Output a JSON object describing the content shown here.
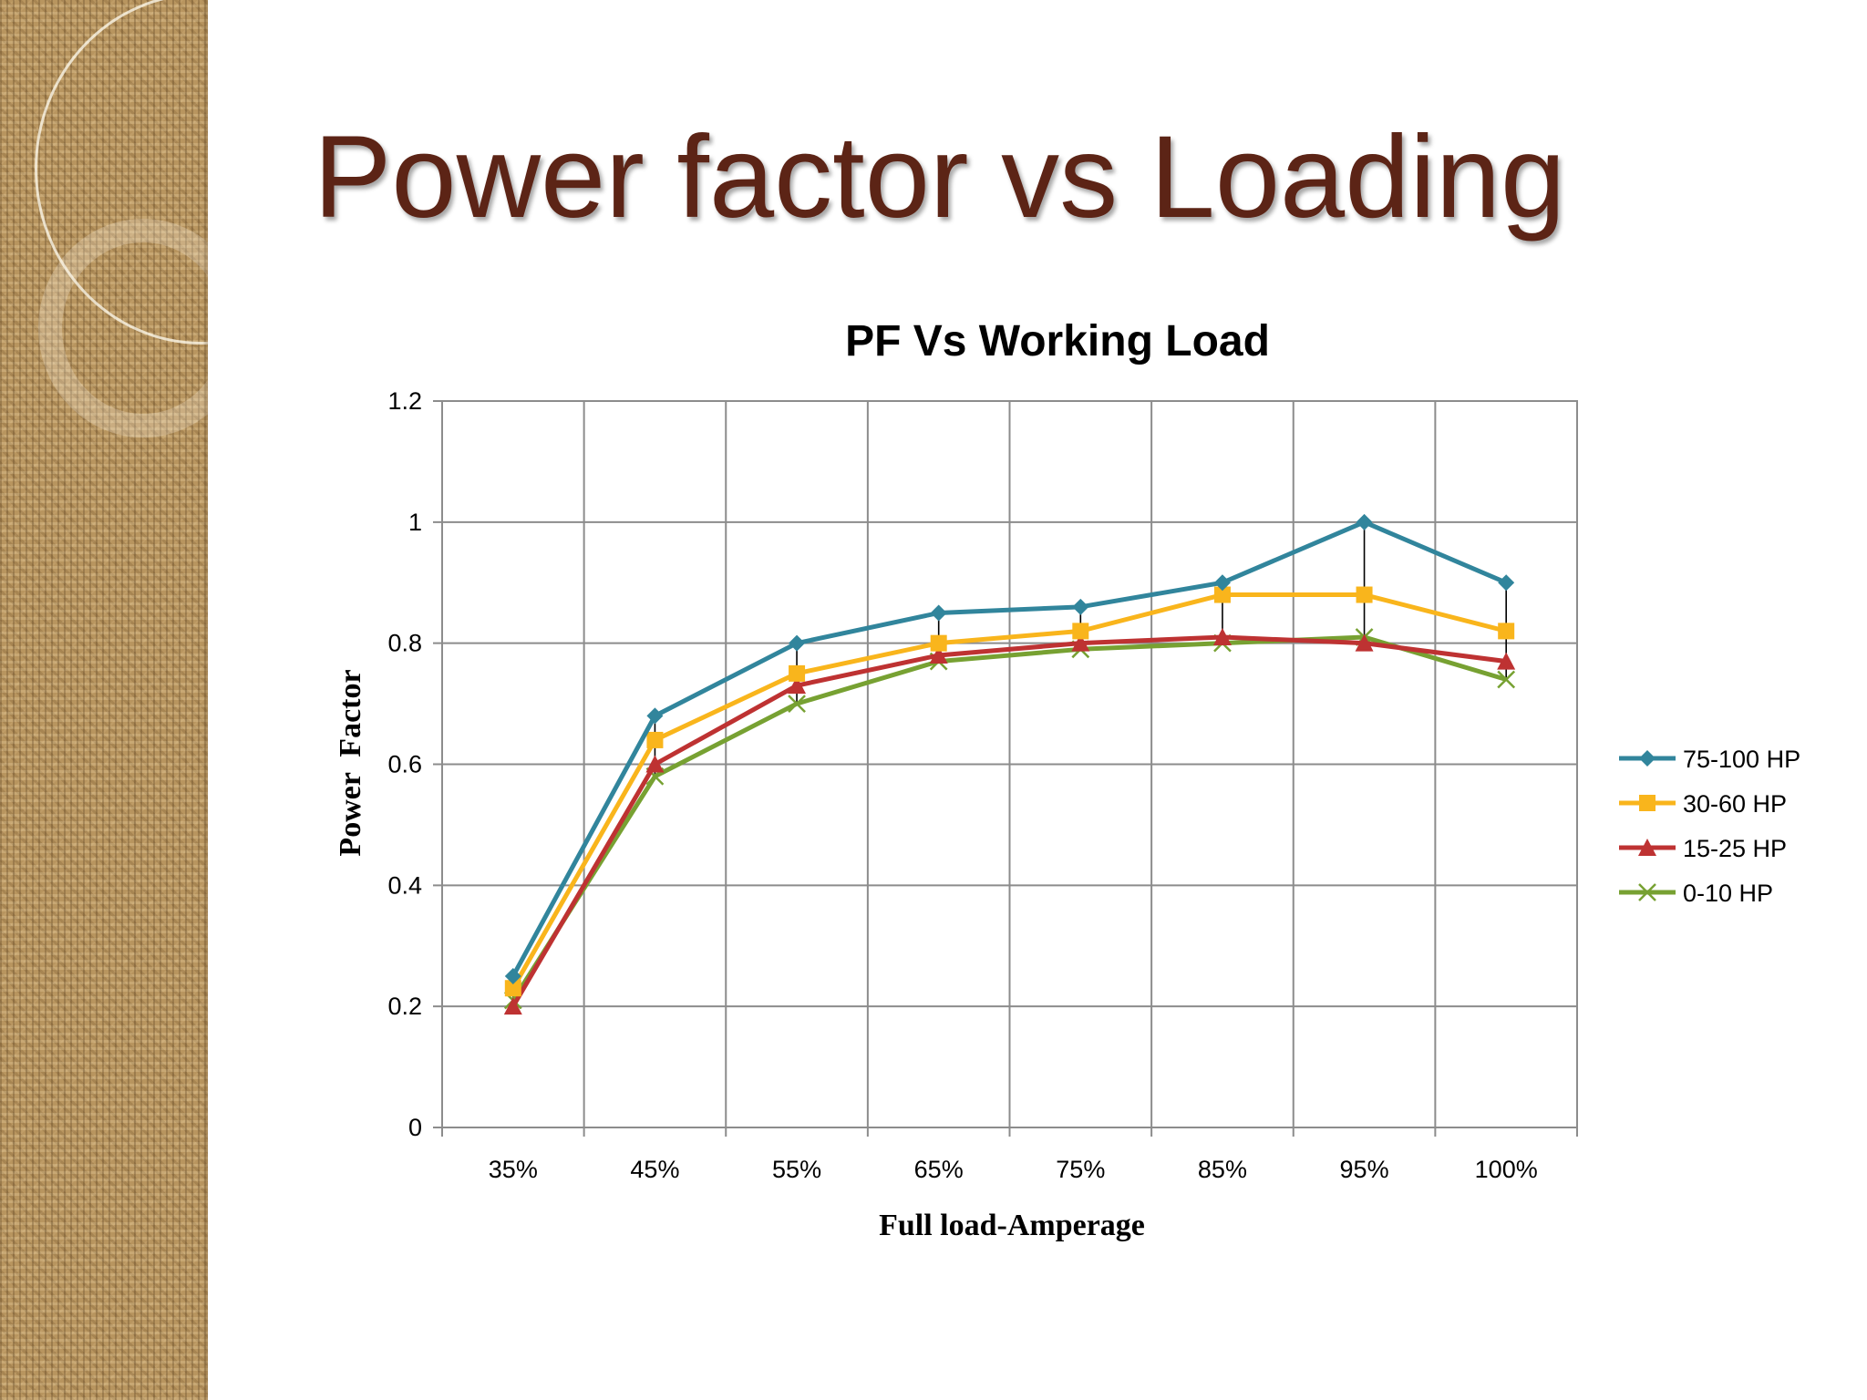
{
  "slide": {
    "title": "Power factor vs Loading"
  },
  "chart_data": {
    "type": "line",
    "title": "PF Vs Working Load",
    "xlabel": "Full load-Amperage",
    "ylabel": "Power  Factor",
    "categories": [
      "35%",
      "45%",
      "55%",
      "65%",
      "75%",
      "85%",
      "95%",
      "100%"
    ],
    "ylim": [
      0,
      1.2
    ],
    "yticks": [
      "0",
      "0.2",
      "0.4",
      "0.6",
      "0.8",
      "1",
      "1.2"
    ],
    "grid": true,
    "legend_position": "right",
    "high_low_lines": true,
    "series": [
      {
        "name": "75-100 HP",
        "color": "#31859c",
        "marker": "diamond",
        "values": [
          0.25,
          0.68,
          0.8,
          0.85,
          0.86,
          0.9,
          1.0,
          0.9
        ]
      },
      {
        "name": "30-60 HP",
        "color": "#f9b51c",
        "marker": "square",
        "values": [
          0.23,
          0.64,
          0.75,
          0.8,
          0.82,
          0.88,
          0.88,
          0.82
        ]
      },
      {
        "name": "15-25 HP",
        "color": "#be3232",
        "marker": "triangle",
        "values": [
          0.2,
          0.6,
          0.73,
          0.78,
          0.8,
          0.81,
          0.8,
          0.77
        ]
      },
      {
        "name": "0-10 HP",
        "color": "#77a132",
        "marker": "x",
        "values": [
          0.21,
          0.58,
          0.7,
          0.77,
          0.79,
          0.8,
          0.81,
          0.74
        ]
      }
    ]
  }
}
